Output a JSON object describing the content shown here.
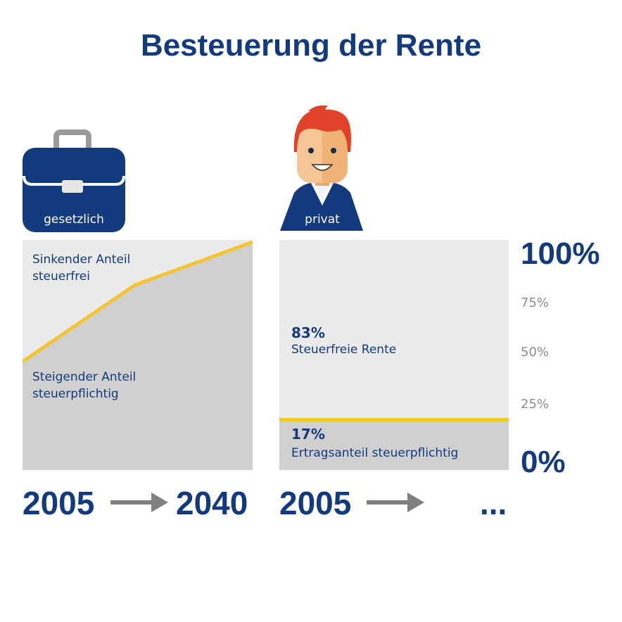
{
  "title": "Besteuerung der Rente",
  "left": {
    "icon_label": "gesetzlich",
    "upper_label_1": "Sinkender Anteil",
    "upper_label_2": "steuerfrei",
    "lower_label_1": "Steigender Anteil",
    "lower_label_2": "steuerpflichtig",
    "year_start": "2005",
    "year_end": "2040"
  },
  "right": {
    "icon_label": "privat",
    "upper_pct": "83%",
    "upper_label": "Steuerfreie Rente",
    "lower_pct": "17%",
    "lower_label": "Ertragsanteil steuerpflichtig",
    "year_start": "2005",
    "year_end": "..."
  },
  "axis": {
    "top": "100%",
    "t75": "75%",
    "t50": "50%",
    "t25": "25%",
    "bottom": "0%"
  },
  "colors": {
    "navy": "#123a7c",
    "yellow": "#f5c431",
    "light_gray": "#ebebeb",
    "dark_gray": "#d0d0d0",
    "arrow_gray": "#808080"
  }
}
